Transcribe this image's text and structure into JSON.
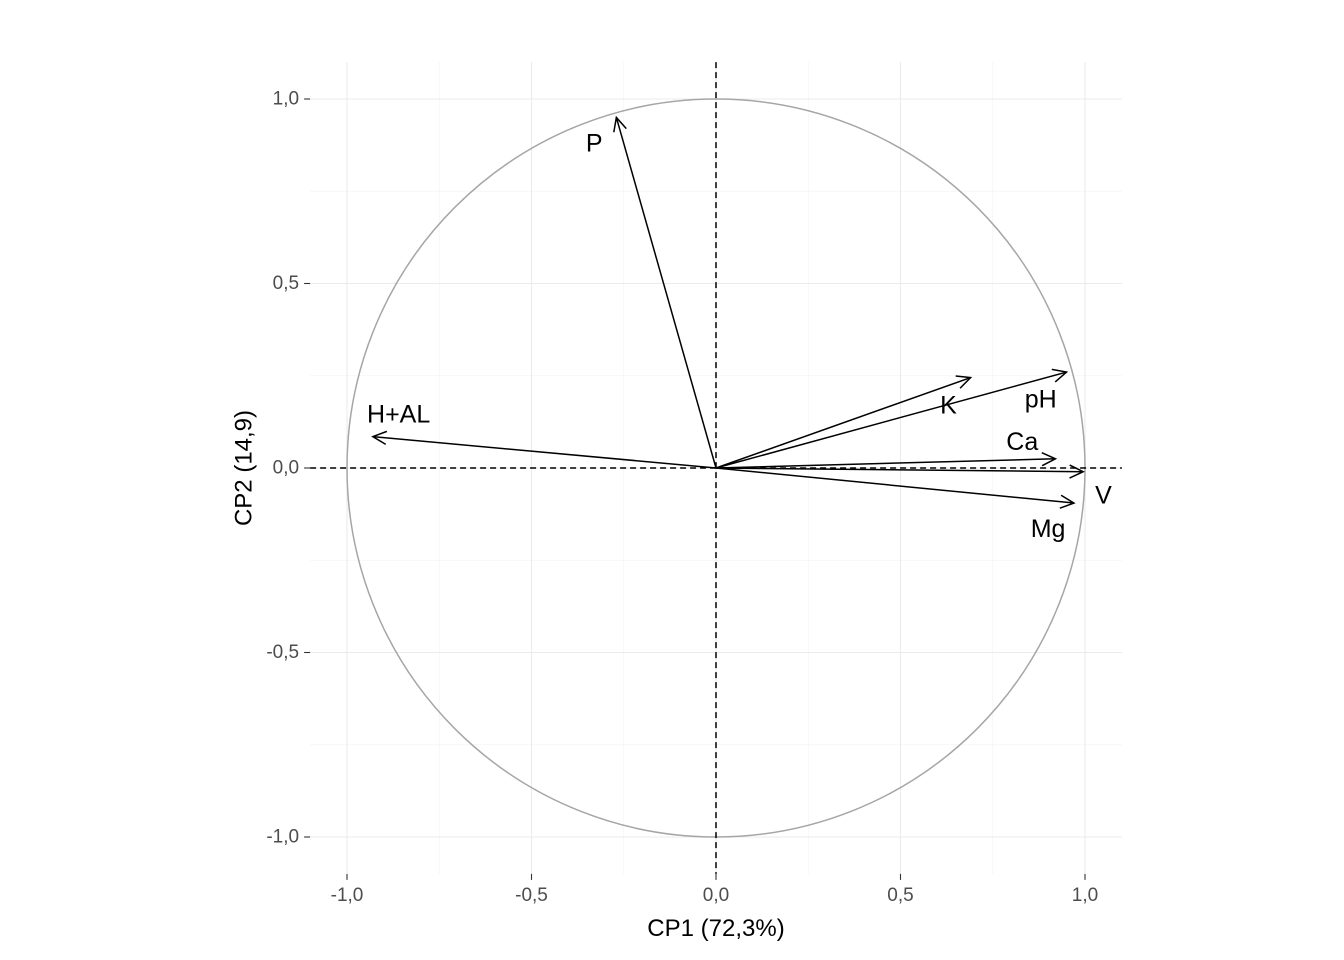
{
  "chart_data": {
    "type": "scatter",
    "subtype": "pca-correlation-circle",
    "xlabel": "CP1 (72,3%)",
    "ylabel": "CP2 (14,9)",
    "xlim": [
      -1.1,
      1.1
    ],
    "ylim": [
      -1.1,
      1.1
    ],
    "x_ticks": [
      -1.0,
      -0.5,
      0.0,
      0.5,
      1.0
    ],
    "x_tick_labels": [
      "-1,0",
      "-0,5",
      "0,0",
      "0,5",
      "1,0"
    ],
    "y_ticks": [
      -1.0,
      -0.5,
      0.0,
      0.5,
      1.0
    ],
    "y_tick_labels": [
      "-1,0",
      "-0,5",
      "0,0",
      "0,5",
      "1,0"
    ],
    "grid": true,
    "unit_circle": true,
    "reference_lines": [
      "x=0",
      "y=0"
    ],
    "variables": [
      {
        "name": "P",
        "x": -0.27,
        "y": 0.95,
        "label_x": -0.33,
        "label_y": 0.88
      },
      {
        "name": "H+AL",
        "x": -0.93,
        "y": 0.085,
        "label_x": -0.86,
        "label_y": 0.145
      },
      {
        "name": "K",
        "x": 0.69,
        "y": 0.245,
        "label_x": 0.63,
        "label_y": 0.17
      },
      {
        "name": "pH",
        "x": 0.95,
        "y": 0.26,
        "label_x": 0.88,
        "label_y": 0.185
      },
      {
        "name": "Ca",
        "x": 0.92,
        "y": 0.025,
        "label_x": 0.83,
        "label_y": 0.07
      },
      {
        "name": "V",
        "x": 0.995,
        "y": -0.01,
        "label_x": 1.05,
        "label_y": -0.075
      },
      {
        "name": "Mg",
        "x": 0.97,
        "y": -0.095,
        "label_x": 0.9,
        "label_y": -0.165
      }
    ]
  }
}
